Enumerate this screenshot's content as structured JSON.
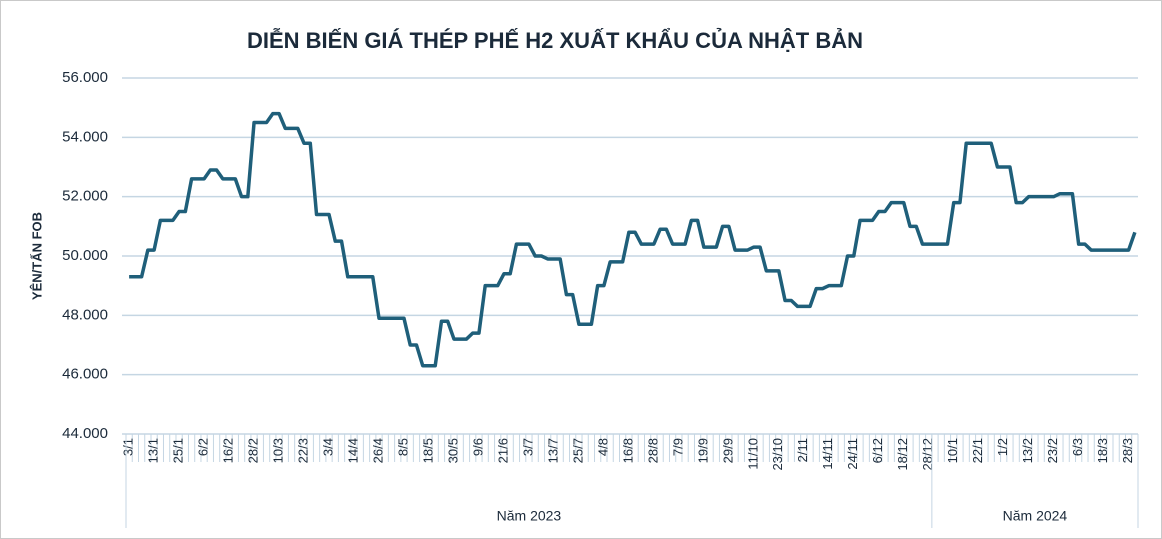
{
  "chart_data": {
    "type": "line",
    "title": "DIỄN BIẾN GIÁ THÉP PHẾ H2 XUẤT KHẨU CỦA NHẬT BẢN",
    "y_label": "YÊN/TẤN FOB",
    "categories": [
      "3/1",
      null,
      null,
      null,
      "13/1",
      null,
      null,
      null,
      "25/1",
      null,
      null,
      null,
      "6/2",
      null,
      null,
      null,
      "16/2",
      null,
      null,
      null,
      "28/2",
      null,
      null,
      null,
      "10/3",
      null,
      null,
      null,
      "22/3",
      null,
      null,
      null,
      "3/4",
      null,
      null,
      null,
      "14/4",
      null,
      null,
      null,
      "26/4",
      null,
      null,
      null,
      "8/5",
      null,
      null,
      null,
      "18/5",
      null,
      null,
      null,
      "30/5",
      null,
      null,
      null,
      "9/6",
      null,
      null,
      null,
      "21/6",
      null,
      null,
      null,
      "3/7",
      null,
      null,
      null,
      "13/7",
      null,
      null,
      null,
      "25/7",
      null,
      null,
      null,
      "4/8",
      null,
      null,
      null,
      "16/8",
      null,
      null,
      null,
      "28/8",
      null,
      null,
      null,
      "7/9",
      null,
      null,
      null,
      "19/9",
      null,
      null,
      null,
      "29/9",
      null,
      null,
      null,
      "11/10",
      null,
      null,
      null,
      "23/10",
      null,
      null,
      null,
      "2/11",
      null,
      null,
      null,
      "14/11",
      null,
      null,
      null,
      "24/11",
      null,
      null,
      null,
      "6/12",
      null,
      null,
      null,
      "18/12",
      null,
      null,
      null,
      "28/12",
      null,
      null,
      null,
      "10/1",
      null,
      null,
      null,
      "22/1",
      null,
      null,
      null,
      "1/2",
      null,
      null,
      null,
      "13/2",
      null,
      null,
      null,
      "23/2",
      null,
      null,
      null,
      "6/3",
      null,
      null,
      null,
      "18/3",
      null,
      null,
      null,
      "28/3",
      null
    ],
    "groups": [
      {
        "label": "Năm 2023",
        "categories": 129
      },
      {
        "label": "Năm 2024",
        "categories": 33
      }
    ],
    "color": "#1f5f7a",
    "values": [
      49300,
      49300,
      49300,
      50200,
      50200,
      51200,
      51200,
      51200,
      51500,
      51500,
      52600,
      52600,
      52600,
      52900,
      52900,
      52600,
      52600,
      52600,
      52000,
      52000,
      54500,
      54500,
      54500,
      54800,
      54800,
      54300,
      54300,
      54300,
      53800,
      53800,
      51400,
      51400,
      51400,
      50500,
      50500,
      49300,
      49300,
      49300,
      49300,
      49300,
      47900,
      47900,
      47900,
      47900,
      47900,
      47000,
      47000,
      46300,
      46300,
      46300,
      47800,
      47800,
      47200,
      47200,
      47200,
      47400,
      47400,
      49000,
      49000,
      49000,
      49400,
      49400,
      50400,
      50400,
      50400,
      50000,
      50000,
      49900,
      49900,
      49900,
      48700,
      48700,
      47700,
      47700,
      47700,
      49000,
      49000,
      49800,
      49800,
      49800,
      50800,
      50800,
      50400,
      50400,
      50400,
      50900,
      50900,
      50400,
      50400,
      50400,
      51200,
      51200,
      50300,
      50300,
      50300,
      51000,
      51000,
      50200,
      50200,
      50200,
      50300,
      50300,
      49500,
      49500,
      49500,
      48500,
      48500,
      48300,
      48300,
      48300,
      48900,
      48900,
      49000,
      49000,
      49000,
      50000,
      50000,
      51200,
      51200,
      51200,
      51500,
      51500,
      51800,
      51800,
      51800,
      51000,
      51000,
      50400,
      50400,
      50400,
      50400,
      50400,
      51800,
      51800,
      53800,
      53800,
      53800,
      53800,
      53800,
      53000,
      53000,
      53000,
      51800,
      51800,
      52000,
      52000,
      52000,
      52000,
      52000,
      52100,
      52100,
      52100,
      50400,
      50400,
      50200,
      50200,
      50200,
      50200,
      50200,
      50200,
      50200,
      50800
    ],
    "ylim": [
      44000,
      56000
    ],
    "yticks": [
      {
        "value": 44000,
        "label": "44.000"
      },
      {
        "value": 46000,
        "label": "46.000"
      },
      {
        "value": 48000,
        "label": "48.000"
      },
      {
        "value": 50000,
        "label": "50.000"
      },
      {
        "value": 52000,
        "label": "52.000"
      },
      {
        "value": 54000,
        "label": "54.000"
      },
      {
        "value": 56000,
        "label": "56.000"
      }
    ],
    "grid": true
  }
}
